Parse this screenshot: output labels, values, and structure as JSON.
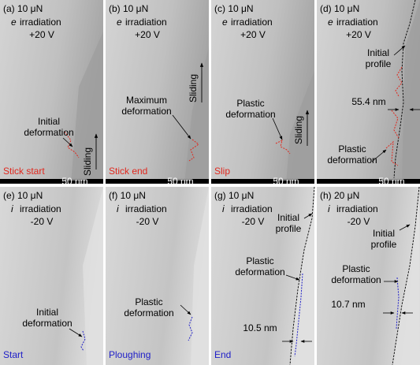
{
  "panels": [
    {
      "label": "(a) 10 μN",
      "beam": "e",
      "beam_text": "irradiation",
      "voltage": "+20 V",
      "notes": [
        {
          "lines": [
            "Initial",
            "deformation"
          ]
        }
      ],
      "sliding": "Sliding",
      "stage": "Stick start",
      "scale": "50 nm"
    },
    {
      "label": "(b) 10 μN",
      "beam": "e",
      "beam_text": "irradiation",
      "voltage": "+20 V",
      "notes": [
        {
          "lines": [
            "Maximum",
            "deformation"
          ]
        }
      ],
      "sliding": "Sliding",
      "stage": "Stick end",
      "scale": "50 nm"
    },
    {
      "label": "(c) 10 μN",
      "beam": "e",
      "beam_text": "irradiation",
      "voltage": "+20 V",
      "notes": [
        {
          "lines": [
            "Plastic",
            "deformation"
          ]
        }
      ],
      "sliding": "Sliding",
      "stage": "Slip",
      "scale": "50 nm"
    },
    {
      "label": "(d) 10 μN",
      "beam": "e",
      "beam_text": "irradiation",
      "voltage": "+20 V",
      "notes": [
        {
          "lines": [
            "Initial",
            "profile"
          ]
        },
        {
          "lines": [
            "55.4 nm"
          ]
        },
        {
          "lines": [
            "Plastic",
            "deformation"
          ]
        }
      ],
      "scale": "50 nm"
    },
    {
      "label": "(e) 10 μN",
      "beam": "i",
      "beam_text": "irradiation",
      "voltage": "-20 V",
      "notes": [
        {
          "lines": [
            "Initial",
            "deformation"
          ]
        }
      ],
      "stage": "Start"
    },
    {
      "label": "(f) 10 μN",
      "beam": "i",
      "beam_text": "irradiation",
      "voltage": "-20 V",
      "notes": [
        {
          "lines": [
            "Plastic",
            "deformation"
          ]
        }
      ],
      "stage": "Ploughing"
    },
    {
      "label": "(g) 10 μN",
      "beam": "i",
      "beam_text": "irradiation",
      "voltage": "-20 V",
      "notes": [
        {
          "lines": [
            "Initial",
            "profile"
          ]
        },
        {
          "lines": [
            "Plastic",
            "deformation"
          ]
        },
        {
          "lines": [
            "10.5 nm"
          ]
        }
      ],
      "stage": "End"
    },
    {
      "label": "(h) 20 μN",
      "beam": "i",
      "beam_text": "irradiation",
      "voltage": "-20 V",
      "notes": [
        {
          "lines": [
            "Initial",
            "profile"
          ]
        },
        {
          "lines": [
            "Plastic",
            "deformation"
          ]
        },
        {
          "lines": [
            "10.7 nm"
          ]
        }
      ]
    }
  ]
}
